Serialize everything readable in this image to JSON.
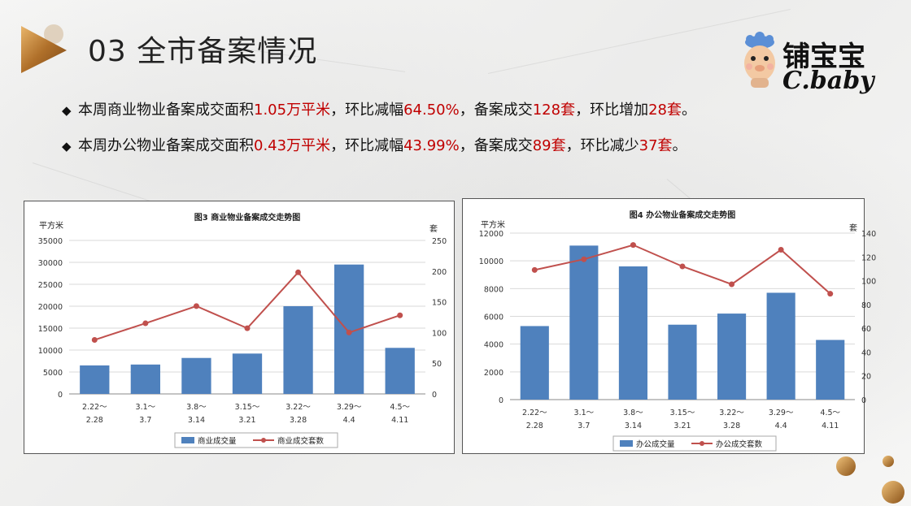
{
  "header": {
    "title": "03 全市备案情况",
    "brand": {
      "name": "铺宝宝",
      "sub": "C.baby"
    }
  },
  "bullets": [
    {
      "parts": [
        {
          "text": "本周商业物业备案成交面积",
          "red": false
        },
        {
          "text": "1.05万平米",
          "red": true
        },
        {
          "text": "，环比减幅",
          "red": false
        },
        {
          "text": "64.50%",
          "red": true
        },
        {
          "text": "，备案成交",
          "red": false
        },
        {
          "text": "128套",
          "red": true
        },
        {
          "text": "，环比增加",
          "red": false
        },
        {
          "text": "28套",
          "red": true
        },
        {
          "text": "。",
          "red": false
        }
      ]
    },
    {
      "parts": [
        {
          "text": "本周办公物业备案成交面积",
          "red": false
        },
        {
          "text": "0.43万平米",
          "red": true
        },
        {
          "text": "，环比减幅",
          "red": false
        },
        {
          "text": "43.99%",
          "red": true
        },
        {
          "text": "，备案成交",
          "red": false
        },
        {
          "text": "89套",
          "red": true
        },
        {
          "text": "，环比减少",
          "red": false
        },
        {
          "text": "37套",
          "red": true
        },
        {
          "text": "。",
          "red": false
        }
      ]
    }
  ],
  "colors": {
    "bar": "#4f81bd",
    "line": "#c0504d",
    "highlight": "#c00000"
  },
  "chart_data": [
    {
      "type": "bar",
      "title": "图3 商业物业备案成交走势图",
      "ylabel": "平方米",
      "y2label": "套",
      "categories": [
        [
          "2.22～",
          "2.28"
        ],
        [
          "3.1～",
          "3.7"
        ],
        [
          "3.8～",
          "3.14"
        ],
        [
          "3.15～",
          "3.21"
        ],
        [
          "3.22～",
          "3.28"
        ],
        [
          "3.29～",
          "4.4"
        ],
        [
          "4.5～",
          "4.11"
        ]
      ],
      "ylim": [
        0,
        35000
      ],
      "yticks": [
        0,
        5000,
        10000,
        15000,
        20000,
        25000,
        30000,
        35000
      ],
      "y2lim": [
        0,
        250
      ],
      "y2ticks": [
        0,
        50,
        100,
        150,
        200,
        250
      ],
      "series": [
        {
          "name": "商业成交量",
          "kind": "bar",
          "axis": "left",
          "values": [
            6500,
            6700,
            8200,
            9200,
            20000,
            29500,
            10500
          ]
        },
        {
          "name": "商业成交套数",
          "kind": "line",
          "axis": "right",
          "values": [
            88,
            115,
            143,
            107,
            198,
            100,
            128
          ]
        }
      ],
      "legend": "bottom"
    },
    {
      "type": "bar",
      "title": "图4 办公物业备案成交走势图",
      "ylabel": "平方米",
      "y2label": "套",
      "categories": [
        [
          "2.22～",
          "2.28"
        ],
        [
          "3.1～",
          "3.7"
        ],
        [
          "3.8～",
          "3.14"
        ],
        [
          "3.15～",
          "3.21"
        ],
        [
          "3.22～",
          "3.28"
        ],
        [
          "3.29～",
          "4.4"
        ],
        [
          "4.5～",
          "4.11"
        ]
      ],
      "ylim": [
        0,
        12000
      ],
      "yticks": [
        0,
        2000,
        4000,
        6000,
        8000,
        10000,
        12000
      ],
      "y2lim": [
        0,
        140
      ],
      "y2ticks": [
        0,
        20,
        40,
        60,
        80,
        100,
        120,
        140
      ],
      "series": [
        {
          "name": "办公成交量",
          "kind": "bar",
          "axis": "left",
          "values": [
            5300,
            11100,
            9600,
            5400,
            6200,
            7700,
            4300
          ]
        },
        {
          "name": "办公成交套数",
          "kind": "line",
          "axis": "right",
          "values": [
            109,
            118,
            130,
            112,
            97,
            126,
            89
          ]
        }
      ],
      "legend": "bottom"
    }
  ]
}
